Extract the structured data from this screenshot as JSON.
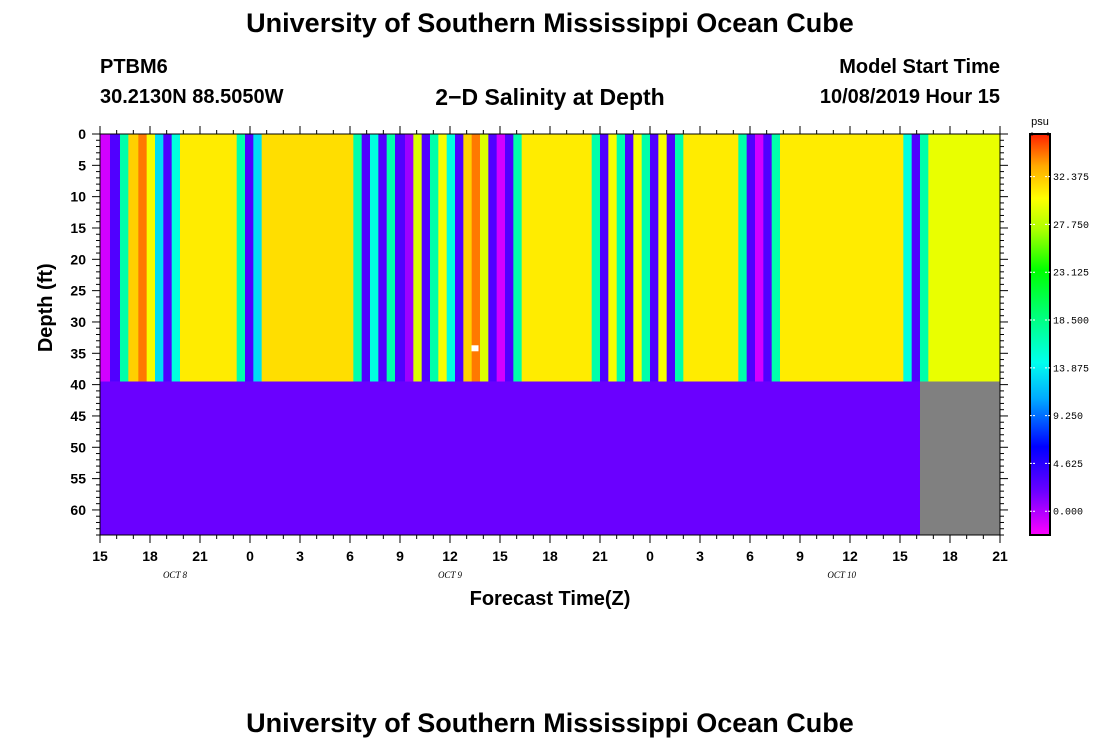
{
  "header": {
    "title": "University of Southern Mississippi Ocean Cube",
    "station_id": "PTBM6",
    "station_coords": "30.2130N 88.5050W",
    "plot_title": "2−D Salinity at Depth",
    "start_label": "Model Start Time",
    "start_value": "10/08/2019 Hour 15"
  },
  "footer": {
    "title": "University of Southern Mississippi Ocean Cube"
  },
  "colors": {
    "below_bottom": "#6a00ff",
    "no_data": "#808080",
    "missing_marker": "#ffffff"
  },
  "chart_data": {
    "type": "heatmap",
    "xlabel": "Forecast Time(Z)",
    "ylabel": "Depth (ft)",
    "x_range": [
      0,
      54
    ],
    "x_unit": "hours since 10/08/2019 15Z",
    "ylim": [
      0,
      64
    ],
    "y_ticks": [
      0,
      5,
      10,
      15,
      20,
      25,
      30,
      35,
      40,
      45,
      50,
      55,
      60
    ],
    "x_ticks": [
      {
        "hour": 0,
        "label": "15"
      },
      {
        "hour": 3,
        "label": "18"
      },
      {
        "hour": 6,
        "label": "21"
      },
      {
        "hour": 9,
        "label": "0"
      },
      {
        "hour": 12,
        "label": "3"
      },
      {
        "hour": 15,
        "label": "6"
      },
      {
        "hour": 18,
        "label": "9"
      },
      {
        "hour": 21,
        "label": "12"
      },
      {
        "hour": 24,
        "label": "15"
      },
      {
        "hour": 27,
        "label": "18"
      },
      {
        "hour": 30,
        "label": "21"
      },
      {
        "hour": 33,
        "label": "0"
      },
      {
        "hour": 36,
        "label": "3"
      },
      {
        "hour": 39,
        "label": "6"
      },
      {
        "hour": 42,
        "label": "9"
      },
      {
        "hour": 45,
        "label": "12"
      },
      {
        "hour": 48,
        "label": "15"
      },
      {
        "hour": 51,
        "label": "18"
      },
      {
        "hour": 54,
        "label": "21"
      }
    ],
    "date_labels": [
      {
        "hour": 4.5,
        "label": "OCT 8"
      },
      {
        "hour": 21,
        "label": "OCT 9"
      },
      {
        "hour": 44.5,
        "label": "OCT 10"
      }
    ],
    "water_depth_ft": 39.5,
    "data_end_hour": 49.2,
    "colorbar": {
      "unit": "psu",
      "min": -2.3,
      "max": 36.5,
      "labels": [
        "32.375",
        "27.750",
        "23.125",
        "18.500",
        "13.875",
        "9.250",
        "4.625",
        "0.000"
      ]
    },
    "columns": [
      {
        "from": 0.0,
        "to": 0.6,
        "value": -1.0
      },
      {
        "from": 0.6,
        "to": 1.2,
        "value": 3.0
      },
      {
        "from": 1.2,
        "to": 1.7,
        "value": 17.0
      },
      {
        "from": 1.7,
        "to": 2.3,
        "value": 32.0
      },
      {
        "from": 2.3,
        "to": 2.8,
        "value": 34.5
      },
      {
        "from": 2.8,
        "to": 3.3,
        "value": 30.0
      },
      {
        "from": 3.3,
        "to": 3.8,
        "value": 13.0
      },
      {
        "from": 3.8,
        "to": 4.3,
        "value": 3.0
      },
      {
        "from": 4.3,
        "to": 4.8,
        "value": 15.0
      },
      {
        "from": 4.8,
        "to": 8.2,
        "value": 31.0
      },
      {
        "from": 8.2,
        "to": 8.7,
        "value": 17.0
      },
      {
        "from": 8.7,
        "to": 9.2,
        "value": 3.0
      },
      {
        "from": 9.2,
        "to": 9.7,
        "value": 13.0
      },
      {
        "from": 9.7,
        "to": 15.2,
        "value": 31.5
      },
      {
        "from": 15.2,
        "to": 15.7,
        "value": 17.0
      },
      {
        "from": 15.7,
        "to": 16.2,
        "value": 3.0
      },
      {
        "from": 16.2,
        "to": 16.7,
        "value": 15.0
      },
      {
        "from": 16.7,
        "to": 17.2,
        "value": 3.0
      },
      {
        "from": 17.2,
        "to": 17.7,
        "value": 17.0
      },
      {
        "from": 17.7,
        "to": 18.3,
        "value": 3.0
      },
      {
        "from": 18.3,
        "to": 18.8,
        "value": 0.5
      },
      {
        "from": 18.8,
        "to": 19.3,
        "value": 29.0
      },
      {
        "from": 19.3,
        "to": 19.8,
        "value": 3.0
      },
      {
        "from": 19.8,
        "to": 20.3,
        "value": 17.0
      },
      {
        "from": 20.3,
        "to": 20.8,
        "value": 30.0
      },
      {
        "from": 20.8,
        "to": 21.3,
        "value": 15.0
      },
      {
        "from": 21.3,
        "to": 21.8,
        "value": 3.0
      },
      {
        "from": 21.8,
        "to": 22.3,
        "value": 32.0
      },
      {
        "from": 22.3,
        "to": 22.8,
        "value": 34.5
      },
      {
        "from": 22.8,
        "to": 23.3,
        "value": 29.0
      },
      {
        "from": 23.3,
        "to": 23.8,
        "value": 3.0
      },
      {
        "from": 23.8,
        "to": 24.3,
        "value": -1.0
      },
      {
        "from": 24.3,
        "to": 24.8,
        "value": 3.0
      },
      {
        "from": 24.8,
        "to": 25.3,
        "value": 17.0
      },
      {
        "from": 25.3,
        "to": 29.5,
        "value": 31.0
      },
      {
        "from": 29.5,
        "to": 30.0,
        "value": 17.0
      },
      {
        "from": 30.0,
        "to": 30.5,
        "value": 3.0
      },
      {
        "from": 30.5,
        "to": 31.0,
        "value": 30.0
      },
      {
        "from": 31.0,
        "to": 31.5,
        "value": 17.0
      },
      {
        "from": 31.5,
        "to": 32.0,
        "value": 3.0
      },
      {
        "from": 32.0,
        "to": 32.5,
        "value": 30.0
      },
      {
        "from": 32.5,
        "to": 33.0,
        "value": 17.0
      },
      {
        "from": 33.0,
        "to": 33.5,
        "value": 3.0
      },
      {
        "from": 33.5,
        "to": 34.0,
        "value": 30.0
      },
      {
        "from": 34.0,
        "to": 34.5,
        "value": 3.0
      },
      {
        "from": 34.5,
        "to": 35.0,
        "value": 17.0
      },
      {
        "from": 35.0,
        "to": 38.3,
        "value": 31.0
      },
      {
        "from": 38.3,
        "to": 38.8,
        "value": 17.0
      },
      {
        "from": 38.8,
        "to": 39.3,
        "value": 3.0
      },
      {
        "from": 39.3,
        "to": 39.8,
        "value": -1.0
      },
      {
        "from": 39.8,
        "to": 40.3,
        "value": 3.0
      },
      {
        "from": 40.3,
        "to": 40.8,
        "value": 17.0
      },
      {
        "from": 40.8,
        "to": 48.2,
        "value": 31.0
      },
      {
        "from": 48.2,
        "to": 48.7,
        "value": 15.0
      },
      {
        "from": 48.7,
        "to": 49.2,
        "value": 3.0
      },
      {
        "from": 49.2,
        "to": 49.7,
        "value": 17.0
      },
      {
        "from": 49.7,
        "to": 54.0,
        "value": 29.5
      }
    ],
    "missing_points": [
      {
        "hour": 22.5,
        "depth_ft": 34.2
      }
    ]
  }
}
